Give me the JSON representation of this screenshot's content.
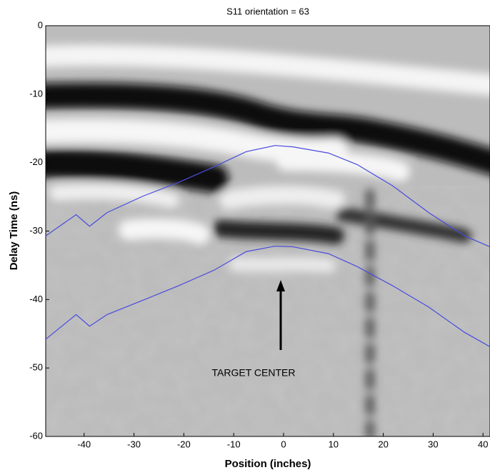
{
  "chart_data": {
    "type": "line",
    "title": "S11  orientation = 63",
    "x_label": "Position (inches)",
    "y_label": "Delay Time (ns)",
    "annotation": "TARGET CENTER",
    "xlim": [
      -47.7,
      41.4
    ],
    "ylim": [
      -60,
      0
    ],
    "xticks": [
      -40,
      -30,
      -20,
      -10,
      0,
      10,
      20,
      30,
      40
    ],
    "yticks": [
      0,
      -10,
      -20,
      -30,
      -40,
      -50,
      -60
    ],
    "series": [
      {
        "color": "#4a4ae0",
        "x": [
          -47.7,
          -41.6,
          -38.9,
          -35.4,
          -28.2,
          -21.1,
          -13.9,
          -7.5,
          -1.7,
          1.9,
          9.0,
          14.8,
          21.9,
          29.1,
          36.3,
          41.4
        ],
        "values": [
          -30.7,
          -27.6,
          -29.3,
          -27.3,
          -24.9,
          -22.9,
          -20.6,
          -18.4,
          -17.5,
          -17.7,
          -18.6,
          -20.3,
          -23.4,
          -27.3,
          -30.7,
          -32.3
        ]
      },
      {
        "color": "#4a4ae0",
        "x": [
          -47.7,
          -41.6,
          -38.9,
          -35.4,
          -28.2,
          -21.1,
          -13.9,
          -7.5,
          -1.7,
          1.9,
          9.0,
          14.8,
          21.9,
          29.1,
          36.3,
          41.4
        ],
        "values": [
          -45.8,
          -42.2,
          -43.9,
          -42.2,
          -40.1,
          -38.0,
          -35.7,
          -33.0,
          -32.2,
          -32.3,
          -33.3,
          -35.2,
          -38.0,
          -41.1,
          -44.8,
          -46.9
        ]
      }
    ]
  }
}
